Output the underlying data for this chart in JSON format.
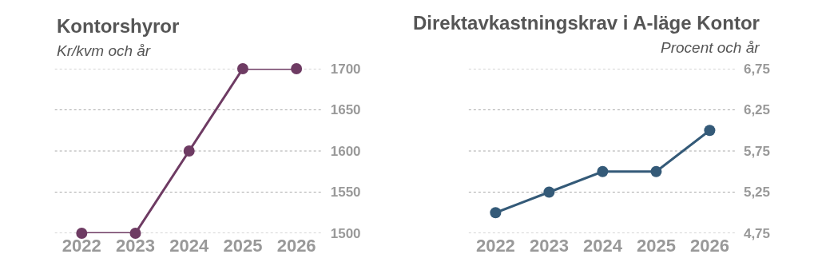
{
  "chart_data": [
    {
      "type": "line",
      "title": "Kontorshyror",
      "subtitle": "Kr/kvm och år",
      "categories": [
        "2022",
        "2023",
        "2024",
        "2025",
        "2026"
      ],
      "series": [
        {
          "color": "#6e3b63",
          "values": [
            1500,
            1500,
            1600,
            1700,
            1700
          ]
        }
      ],
      "ylim": [
        1500,
        1700
      ],
      "yticks": [
        1500,
        1550,
        1600,
        1650,
        1700
      ],
      "grid": "y",
      "marker": "circle",
      "line_style": "solid"
    },
    {
      "type": "line",
      "title": "Direktavkastningskrav i A-läge Kontor",
      "subtitle": "Procent och år",
      "categories": [
        "2022",
        "2023",
        "2024",
        "2025",
        "2026"
      ],
      "series": [
        {
          "color": "#345a78",
          "values": [
            5.0,
            5.25,
            5.5,
            5.5,
            6.0
          ]
        }
      ],
      "ylim": [
        4.75,
        6.75
      ],
      "yticks": [
        {
          "value": 4.75,
          "label": "4,75"
        },
        {
          "value": 5.25,
          "label": "5,25"
        },
        {
          "value": 5.75,
          "label": "5,75"
        },
        {
          "value": 6.25,
          "label": "6,25"
        },
        {
          "value": 6.75,
          "label": "6,75"
        }
      ],
      "grid": "y",
      "marker": "circle",
      "line_style": "solid"
    }
  ]
}
